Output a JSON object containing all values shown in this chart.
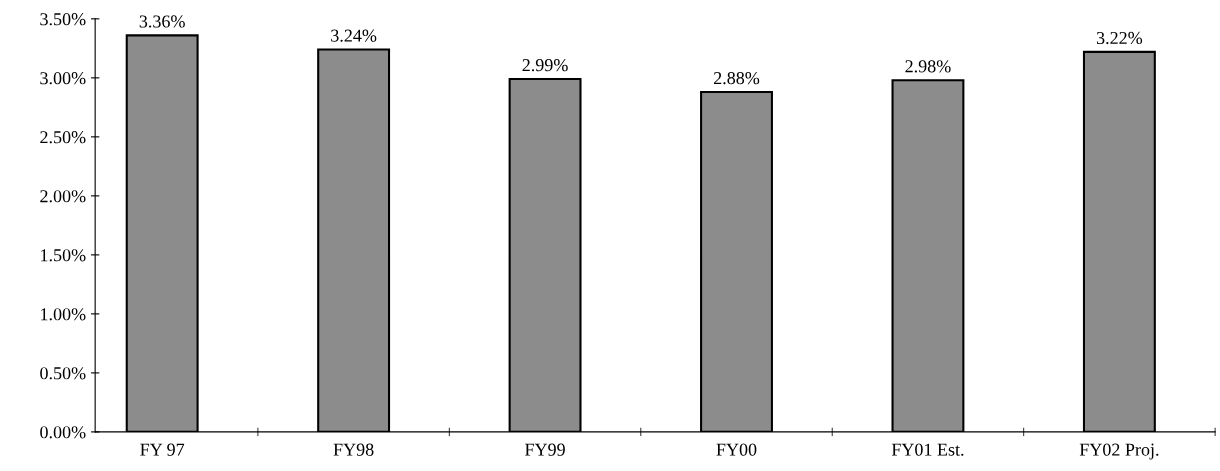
{
  "chart_data": {
    "type": "bar",
    "categories": [
      "FY 97",
      "FY98",
      "FY99",
      "FY00",
      "FY01 Est.",
      "FY02 Proj."
    ],
    "values": [
      3.36,
      3.24,
      2.99,
      2.88,
      2.98,
      3.22
    ],
    "value_labels": [
      "3.36%",
      "3.24%",
      "2.99%",
      "2.88%",
      "2.98%",
      "3.22%"
    ],
    "color": "#8c8c8c",
    "ylim": [
      0,
      3.5
    ],
    "yticks": [
      {
        "value": 0,
        "label": "0.00%"
      },
      {
        "value": 0.5,
        "label": "0.50%"
      },
      {
        "value": 1,
        "label": "1.00%"
      },
      {
        "value": 1.5,
        "label": "1.50%"
      },
      {
        "value": 2,
        "label": "2.00%"
      },
      {
        "value": 2.5,
        "label": "2.50%"
      },
      {
        "value": 3,
        "label": "3.00%"
      },
      {
        "value": 3.5,
        "label": "3.50%"
      }
    ],
    "grid": false,
    "legend": false
  }
}
